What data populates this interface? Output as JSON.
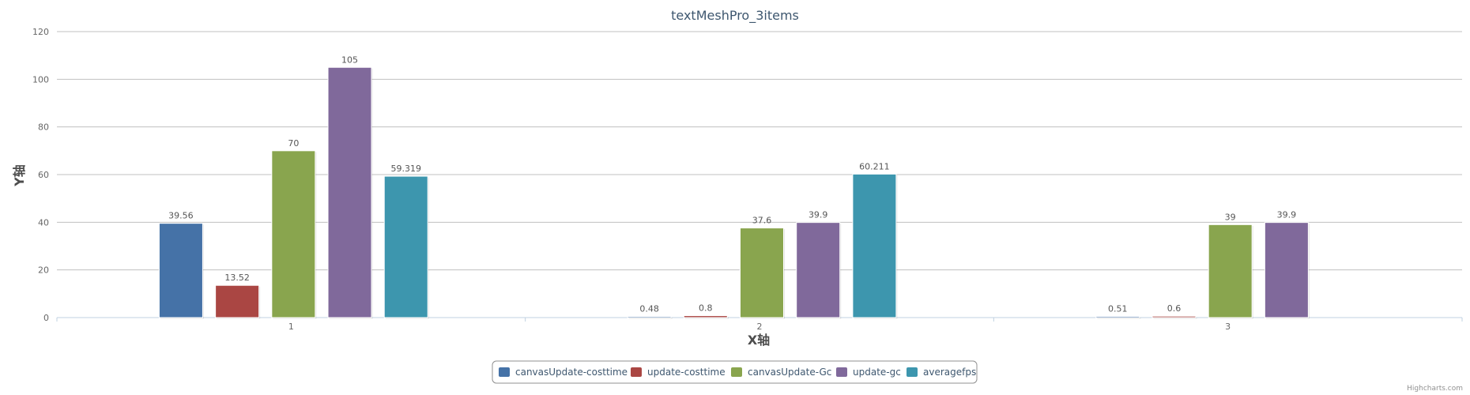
{
  "chart_data": {
    "type": "bar",
    "title": "textMeshPro_3items",
    "xlabel": "X轴",
    "ylabel": "Y轴",
    "categories": [
      "1",
      "2",
      "3"
    ],
    "ylim": [
      0,
      120
    ],
    "yticks": [
      0,
      20,
      40,
      60,
      80,
      100,
      120
    ],
    "grid": true,
    "legend_position": "bottom-center",
    "series": [
      {
        "name": "canvasUpdate-costtime",
        "color": "#4572a7",
        "values": [
          39.56,
          0.48,
          0.51
        ],
        "labels": [
          "39.56",
          "0.48",
          "0.51"
        ]
      },
      {
        "name": "update-costtime",
        "color": "#aa4643",
        "values": [
          13.52,
          0.8,
          0.6
        ],
        "labels": [
          "13.52",
          "0.8",
          "0.6"
        ]
      },
      {
        "name": "canvasUpdate-Gc",
        "color": "#89a54e",
        "values": [
          70,
          37.6,
          39
        ],
        "labels": [
          "70",
          "37.6",
          "39"
        ]
      },
      {
        "name": "update-gc",
        "color": "#80699b",
        "values": [
          105,
          39.9,
          39.9
        ],
        "labels": [
          "105",
          "39.9",
          "39.9"
        ]
      },
      {
        "name": "averagefps",
        "color": "#3d96ae",
        "values": [
          59.319,
          60.211,
          null
        ],
        "labels": [
          "59.319",
          "60.211",
          null
        ]
      }
    ]
  },
  "credits": "Highcharts.com"
}
